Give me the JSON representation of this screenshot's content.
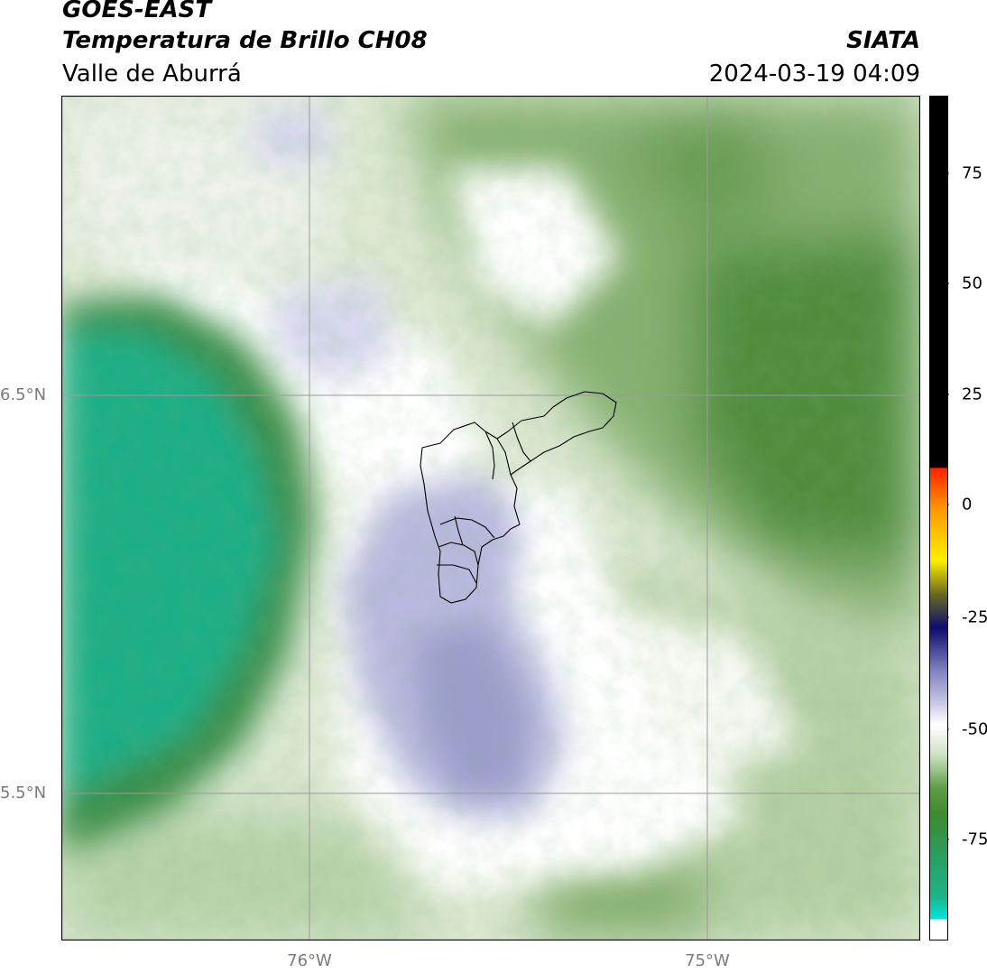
{
  "header": {
    "title_line1": "GOES-EAST",
    "title_line2": "Temperatura de Brillo CH08",
    "agency": "SIATA",
    "region": "Valle de Aburrá",
    "datetime": "2024-03-19 04:09"
  },
  "map": {
    "lat_labels": [
      "6.5°N",
      "5.5°N"
    ],
    "lon_labels": [
      "76°W",
      "75°W"
    ],
    "boundary_color": "#000000",
    "gridline_color": "#9a9a9a"
  },
  "colorbar": {
    "ticks": [
      "75",
      "50",
      "25",
      "0",
      "-25",
      "-50",
      "-75"
    ],
    "range": [
      -95,
      92
    ],
    "colors": {
      "black_warm": "#000000",
      "red": "#ff2200",
      "orange": "#ff9900",
      "yellow": "#ffee00",
      "olive": "#6b6a1e",
      "navy": "#0d0d6e",
      "lavender": "#9e9fd0",
      "white": "#ffffff",
      "green": "#3e8a2e",
      "teal": "#1bb58a",
      "cyan": "#00e5e0"
    }
  }
}
